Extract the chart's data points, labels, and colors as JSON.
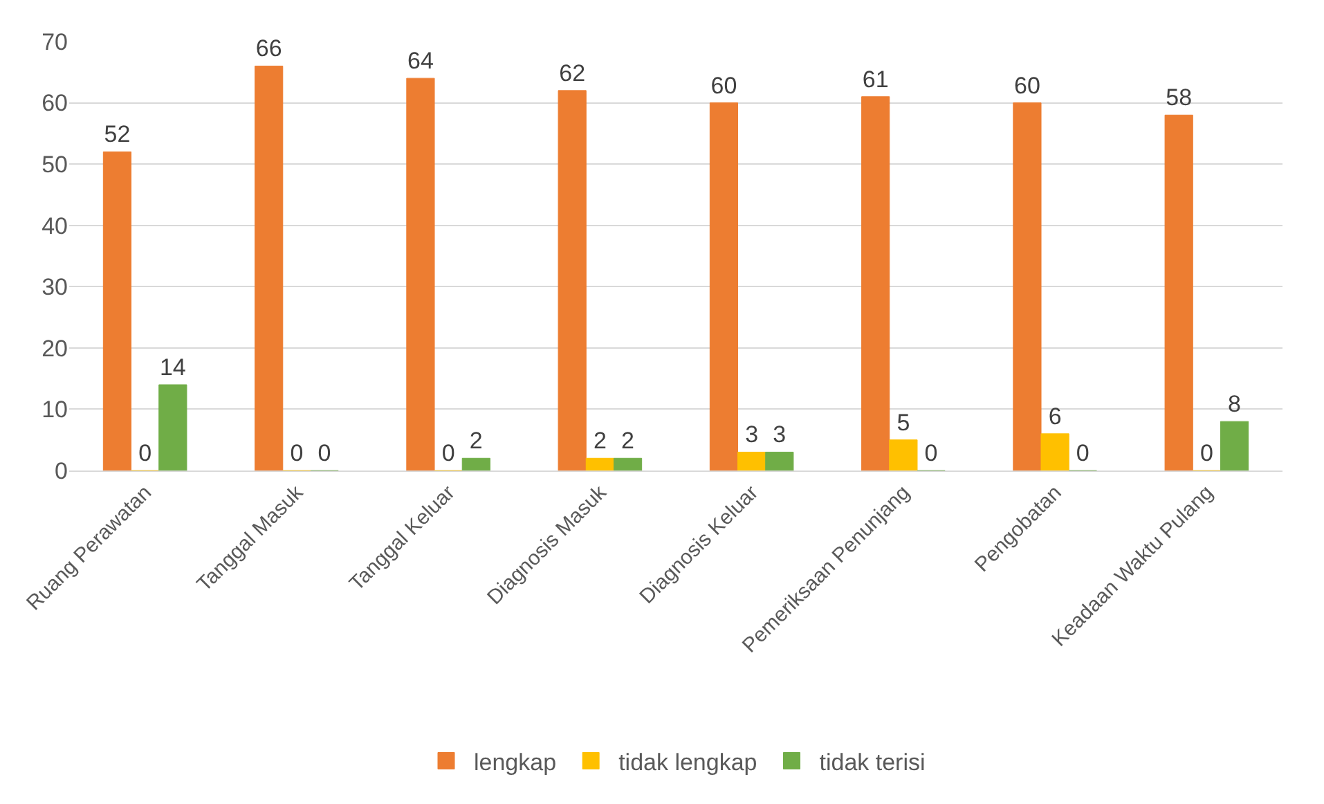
{
  "chart_data": {
    "type": "bar",
    "categories": [
      "Ruang Perawatan",
      "Tanggal Masuk",
      "Tanggal Keluar",
      "Diagnosis Masuk",
      "Diagnosis Keluar",
      "Pemeriksaan Penunjang",
      "Pengobatan",
      "Keadaan Waktu Pulang"
    ],
    "series": [
      {
        "name": "lengkap",
        "color": "#ed7d31",
        "values": [
          52,
          66,
          64,
          62,
          60,
          61,
          60,
          58
        ]
      },
      {
        "name": "tidak lengkap",
        "color": "#ffc000",
        "values": [
          0,
          0,
          0,
          2,
          3,
          5,
          6,
          0
        ]
      },
      {
        "name": "tidak terisi",
        "color": "#70ad47",
        "values": [
          14,
          0,
          2,
          2,
          3,
          0,
          0,
          8
        ]
      }
    ],
    "ylim": [
      0,
      70
    ],
    "yticks": [
      0,
      10,
      20,
      30,
      40,
      50,
      60,
      70
    ],
    "grid": "y",
    "legend": "bottom",
    "data_labels": true
  }
}
